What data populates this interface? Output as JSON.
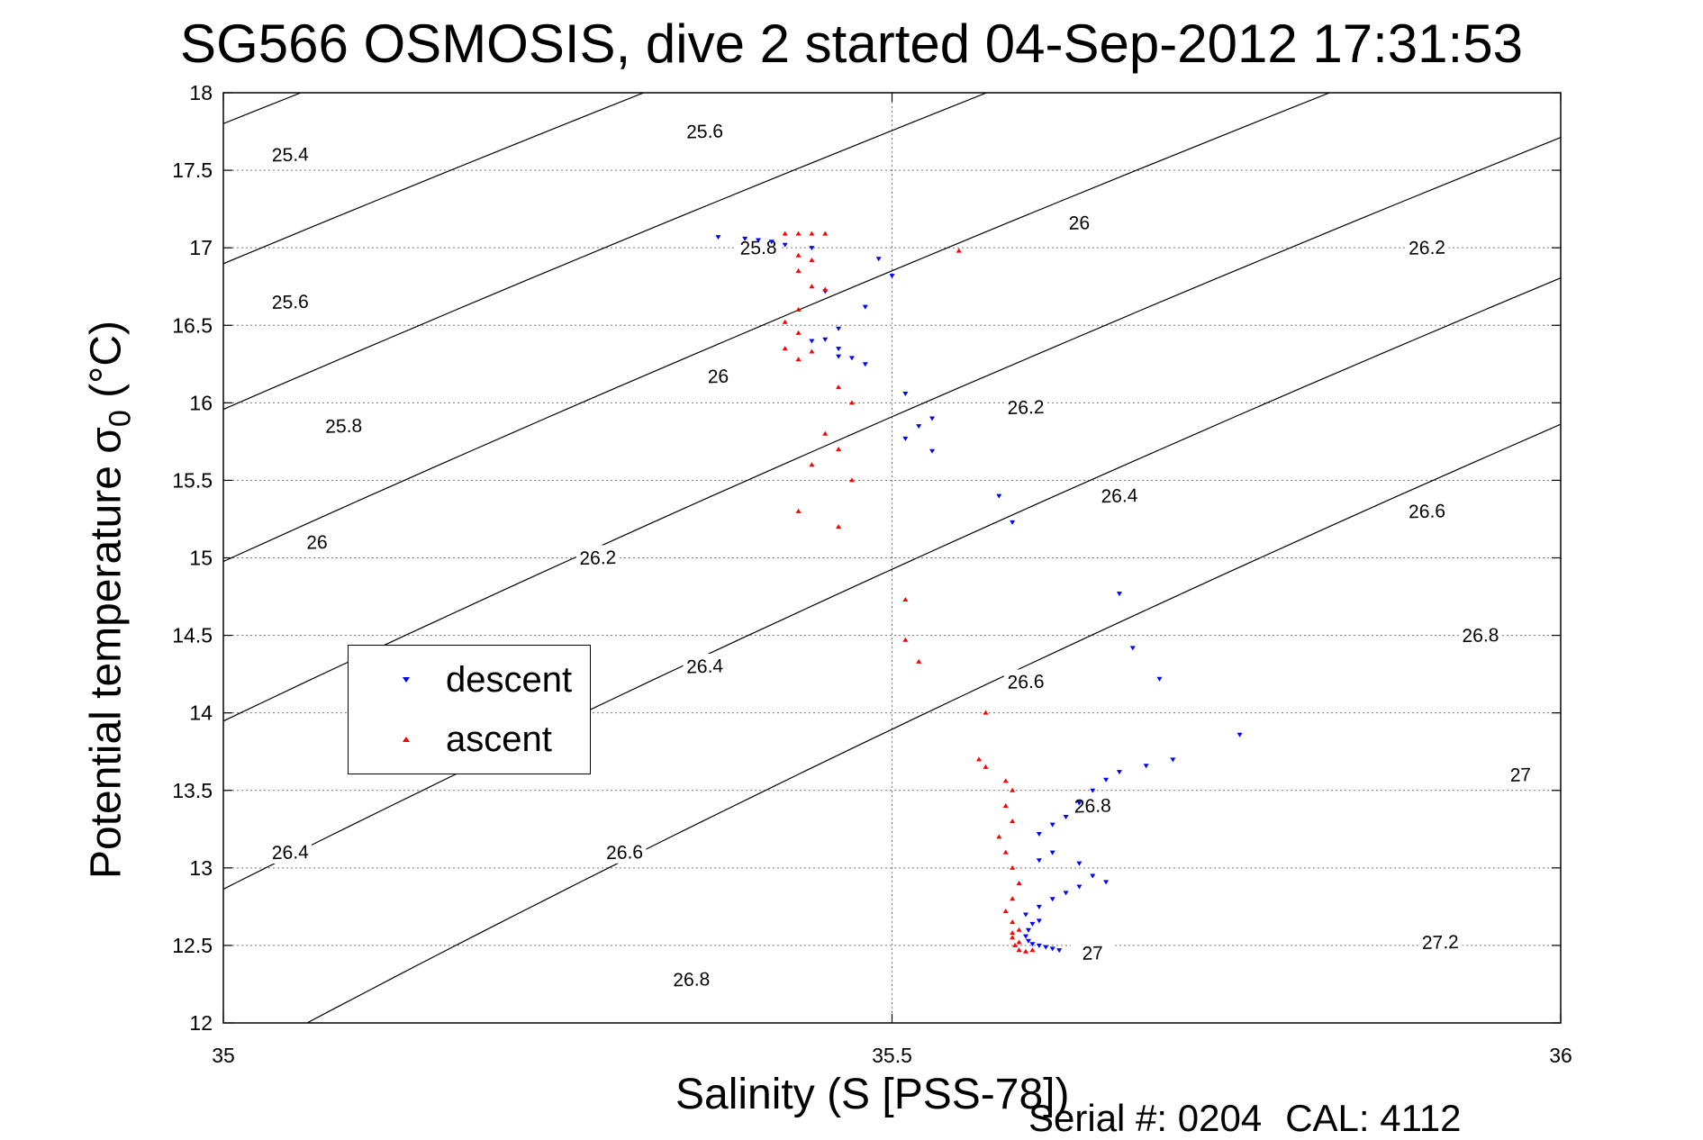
{
  "chart_data": {
    "type": "scatter",
    "title": "SG566 OSMOSIS, dive 2 started 04-Sep-2012 17:31:53",
    "xlabel": "Salinity (S [PSS-78])",
    "ylabel_main": "Potential temperature σ",
    "ylabel_sub": "0",
    "ylabel_unit": " (°C)",
    "xlim": [
      35,
      36
    ],
    "ylim": [
      12,
      18
    ],
    "xticks": [
      35,
      35.5,
      36
    ],
    "xtick_labels": [
      "35",
      "35.5",
      "36"
    ],
    "yticks": [
      12,
      12.5,
      13,
      13.5,
      14,
      14.5,
      15,
      15.5,
      16,
      16.5,
      17,
      17.5,
      18
    ],
    "ytick_labels": [
      "12",
      "12.5",
      "13",
      "13.5",
      "14",
      "14.5",
      "15",
      "15.5",
      "16",
      "16.5",
      "17",
      "17.5",
      "18"
    ],
    "grid": true,
    "legend_position": "center-left",
    "series": [
      {
        "name": "descent",
        "marker": "triangle-down",
        "color": "#0000ff",
        "points": [
          [
            35.37,
            17.07
          ],
          [
            35.39,
            17.06
          ],
          [
            35.4,
            17.05
          ],
          [
            35.41,
            17.04
          ],
          [
            35.42,
            17.02
          ],
          [
            35.44,
            17.0
          ],
          [
            35.45,
            16.72
          ],
          [
            35.46,
            16.48
          ],
          [
            35.44,
            16.4
          ],
          [
            35.45,
            16.41
          ],
          [
            35.46,
            16.35
          ],
          [
            35.47,
            16.29
          ],
          [
            35.46,
            16.3
          ],
          [
            35.48,
            16.25
          ],
          [
            35.49,
            16.93
          ],
          [
            35.5,
            16.82
          ],
          [
            35.48,
            16.62
          ],
          [
            35.51,
            16.06
          ],
          [
            35.52,
            15.85
          ],
          [
            35.53,
            15.9
          ],
          [
            35.51,
            15.77
          ],
          [
            35.53,
            15.69
          ],
          [
            35.58,
            15.4
          ],
          [
            35.59,
            15.23
          ],
          [
            35.67,
            14.77
          ],
          [
            35.68,
            14.42
          ],
          [
            35.7,
            14.22
          ],
          [
            35.76,
            13.86
          ],
          [
            35.71,
            13.7
          ],
          [
            35.69,
            13.66
          ],
          [
            35.67,
            13.62
          ],
          [
            35.66,
            13.57
          ],
          [
            35.65,
            13.5
          ],
          [
            35.64,
            13.42
          ],
          [
            35.63,
            13.33
          ],
          [
            35.62,
            13.28
          ],
          [
            35.61,
            13.22
          ],
          [
            35.62,
            13.1
          ],
          [
            35.61,
            13.05
          ],
          [
            35.64,
            13.03
          ],
          [
            35.65,
            12.95
          ],
          [
            35.66,
            12.91
          ],
          [
            35.64,
            12.88
          ],
          [
            35.63,
            12.84
          ],
          [
            35.62,
            12.8
          ],
          [
            35.61,
            12.75
          ],
          [
            35.6,
            12.7
          ],
          [
            35.61,
            12.66
          ],
          [
            35.605,
            12.64
          ],
          [
            35.602,
            12.6
          ],
          [
            35.6,
            12.56
          ],
          [
            35.602,
            12.53
          ],
          [
            35.605,
            12.51
          ],
          [
            35.61,
            12.5
          ],
          [
            35.615,
            12.49
          ],
          [
            35.62,
            12.48
          ],
          [
            35.625,
            12.47
          ]
        ]
      },
      {
        "name": "ascent",
        "marker": "triangle-up",
        "color": "#ff0000",
        "points": [
          [
            35.42,
            17.09
          ],
          [
            35.43,
            17.09
          ],
          [
            35.44,
            17.09
          ],
          [
            35.45,
            17.09
          ],
          [
            35.43,
            16.95
          ],
          [
            35.44,
            16.92
          ],
          [
            35.43,
            16.85
          ],
          [
            35.44,
            16.75
          ],
          [
            35.45,
            16.73
          ],
          [
            35.43,
            16.6
          ],
          [
            35.42,
            16.52
          ],
          [
            35.43,
            16.45
          ],
          [
            35.42,
            16.35
          ],
          [
            35.44,
            16.33
          ],
          [
            35.43,
            16.28
          ],
          [
            35.46,
            16.1
          ],
          [
            35.47,
            16.0
          ],
          [
            35.45,
            15.8
          ],
          [
            35.46,
            15.7
          ],
          [
            35.44,
            15.6
          ],
          [
            35.47,
            15.5
          ],
          [
            35.43,
            15.3
          ],
          [
            35.46,
            15.2
          ],
          [
            35.55,
            16.98
          ],
          [
            35.51,
            14.73
          ],
          [
            35.51,
            14.47
          ],
          [
            35.52,
            14.33
          ],
          [
            35.57,
            14.0
          ],
          [
            35.565,
            13.7
          ],
          [
            35.57,
            13.65
          ],
          [
            35.585,
            13.56
          ],
          [
            35.59,
            13.5
          ],
          [
            35.585,
            13.4
          ],
          [
            35.59,
            13.3
          ],
          [
            35.58,
            13.2
          ],
          [
            35.585,
            13.1
          ],
          [
            35.59,
            13.0
          ],
          [
            35.595,
            12.9
          ],
          [
            35.59,
            12.8
          ],
          [
            35.585,
            12.72
          ],
          [
            35.59,
            12.65
          ],
          [
            35.595,
            12.6
          ],
          [
            35.59,
            12.55
          ],
          [
            35.592,
            12.5
          ],
          [
            35.595,
            12.47
          ],
          [
            35.6,
            12.46
          ],
          [
            35.605,
            12.47
          ],
          [
            35.595,
            12.52
          ],
          [
            35.59,
            12.58
          ]
        ]
      }
    ],
    "contours": [
      {
        "label": "25.4",
        "label_at": [
          35.05,
          17.6
        ]
      },
      {
        "label": "25.6",
        "label_at": [
          35.36,
          17.75
        ]
      },
      {
        "label": "25.6",
        "label_at": [
          35.05,
          16.65
        ]
      },
      {
        "label": "25.8",
        "label_at": [
          35.4,
          17.0
        ]
      },
      {
        "label": "25.8",
        "label_at": [
          35.09,
          15.85
        ]
      },
      {
        "label": "26",
        "label_at": [
          35.37,
          16.17
        ]
      },
      {
        "label": "26",
        "label_at": [
          35.07,
          15.1
        ]
      },
      {
        "label": "26",
        "label_at": [
          35.64,
          17.16
        ]
      },
      {
        "label": "26.2",
        "label_at": [
          35.28,
          15.0
        ]
      },
      {
        "label": "26.2",
        "label_at": [
          35.6,
          15.97
        ]
      },
      {
        "label": "26.2",
        "label_at": [
          35.9,
          17.0
        ]
      },
      {
        "label": "26.4",
        "label_at": [
          35.05,
          13.1
        ]
      },
      {
        "label": "26.4",
        "label_at": [
          35.36,
          14.3
        ]
      },
      {
        "label": "26.4",
        "label_at": [
          35.67,
          15.4
        ]
      },
      {
        "label": "26.6",
        "label_at": [
          35.3,
          13.1
        ]
      },
      {
        "label": "26.6",
        "label_at": [
          35.6,
          14.2
        ]
      },
      {
        "label": "26.6",
        "label_at": [
          35.9,
          15.3
        ]
      },
      {
        "label": "26.8",
        "label_at": [
          35.35,
          12.28
        ]
      },
      {
        "label": "26.8",
        "label_at": [
          35.65,
          13.4
        ]
      },
      {
        "label": "26.8",
        "label_at": [
          35.94,
          14.5
        ]
      },
      {
        "label": "27",
        "label_at": [
          35.65,
          12.45
        ]
      },
      {
        "label": "27",
        "label_at": [
          35.97,
          13.6
        ]
      },
      {
        "label": "27.2",
        "label_at": [
          35.91,
          12.52
        ]
      }
    ]
  },
  "footer": {
    "serial": "Serial #: 0204",
    "cal": "CAL: 4112"
  }
}
